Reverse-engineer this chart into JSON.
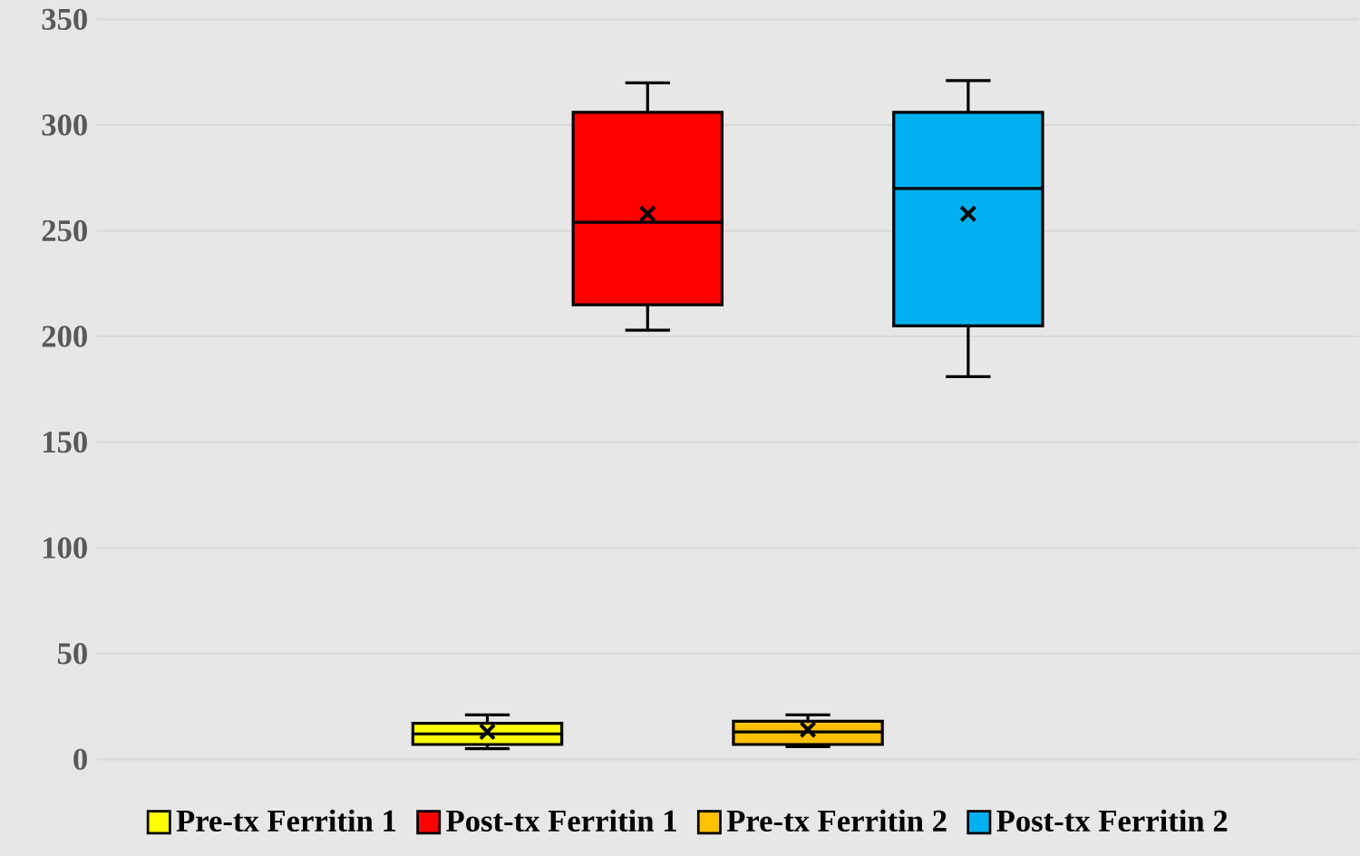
{
  "chart_data": {
    "type": "box",
    "categories": [
      null
    ],
    "series": [
      {
        "name": "Pre-tx Ferritin 1",
        "color": "#ffff00",
        "boxes": [
          {
            "low": 5,
            "q1": 7,
            "median": 12,
            "q3": 17,
            "high": 21,
            "mean": 13
          }
        ]
      },
      {
        "name": "Post-tx Ferritin 1",
        "color": "#ff0000",
        "boxes": [
          {
            "low": 203,
            "q1": 215,
            "median": 254,
            "q3": 306,
            "high": 320,
            "mean": 258
          }
        ]
      },
      {
        "name": "Pre-tx Ferritin 2",
        "color": "#ffc000",
        "boxes": [
          {
            "low": 6,
            "q1": 7,
            "median": 13,
            "q3": 18,
            "high": 21,
            "mean": 14
          }
        ]
      },
      {
        "name": "Post-tx Ferritin 2",
        "color": "#00b0f0",
        "boxes": [
          {
            "low": 181,
            "q1": 205,
            "median": 270,
            "q3": 306,
            "high": 321,
            "mean": 258
          }
        ]
      }
    ],
    "ylim": [
      0,
      350
    ],
    "yticks": [
      0,
      50,
      100,
      150,
      200,
      250,
      300,
      350
    ],
    "grid": "y",
    "legend": "bottom"
  }
}
